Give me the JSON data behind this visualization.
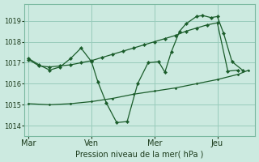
{
  "xlabel": "Pression niveau de la mer( hPa )",
  "bg_color": "#cceae0",
  "grid_color": "#99ccbb",
  "line_color": "#1a5c2a",
  "ylim": [
    1013.5,
    1019.8
  ],
  "yticks": [
    1014,
    1015,
    1016,
    1017,
    1018,
    1019
  ],
  "day_labels": [
    "Mar",
    "Ven",
    "Mer",
    "Jeu"
  ],
  "day_positions": [
    0,
    30,
    60,
    90
  ],
  "vline_positions": [
    0,
    30,
    60,
    90
  ],
  "xlim": [
    -2,
    108
  ],
  "figsize": [
    3.2,
    2.0
  ],
  "dpi": 100,
  "line1_x": [
    0,
    5,
    10,
    15,
    20,
    25,
    30,
    35,
    40,
    45,
    50,
    55,
    60,
    65,
    70,
    75,
    80,
    85,
    90,
    95,
    100
  ],
  "line1_y": [
    1017.15,
    1016.85,
    1016.8,
    1016.85,
    1016.9,
    1017.0,
    1017.1,
    1017.25,
    1017.4,
    1017.55,
    1017.7,
    1017.85,
    1018.0,
    1018.15,
    1018.3,
    1018.5,
    1018.65,
    1018.8,
    1018.9,
    1016.6,
    1016.65
  ],
  "line2_x": [
    0,
    5,
    10,
    15,
    20,
    25,
    30,
    33,
    37,
    42,
    47,
    52,
    57,
    62,
    65,
    68,
    72,
    75,
    80,
    83,
    87,
    90,
    93,
    97,
    102
  ],
  "line2_y": [
    1017.2,
    1016.9,
    1016.65,
    1016.8,
    1017.2,
    1017.7,
    1017.05,
    1016.1,
    1015.1,
    1014.15,
    1014.2,
    1016.0,
    1017.0,
    1017.05,
    1016.55,
    1017.5,
    1018.5,
    1018.85,
    1019.2,
    1019.25,
    1019.15,
    1019.2,
    1018.4,
    1017.05,
    1016.65
  ],
  "line3_x": [
    0,
    10,
    20,
    30,
    40,
    50,
    60,
    70,
    80,
    90,
    100,
    105
  ],
  "line3_y": [
    1015.05,
    1015.0,
    1015.05,
    1015.15,
    1015.3,
    1015.5,
    1015.65,
    1015.8,
    1016.0,
    1016.2,
    1016.45,
    1016.65
  ]
}
